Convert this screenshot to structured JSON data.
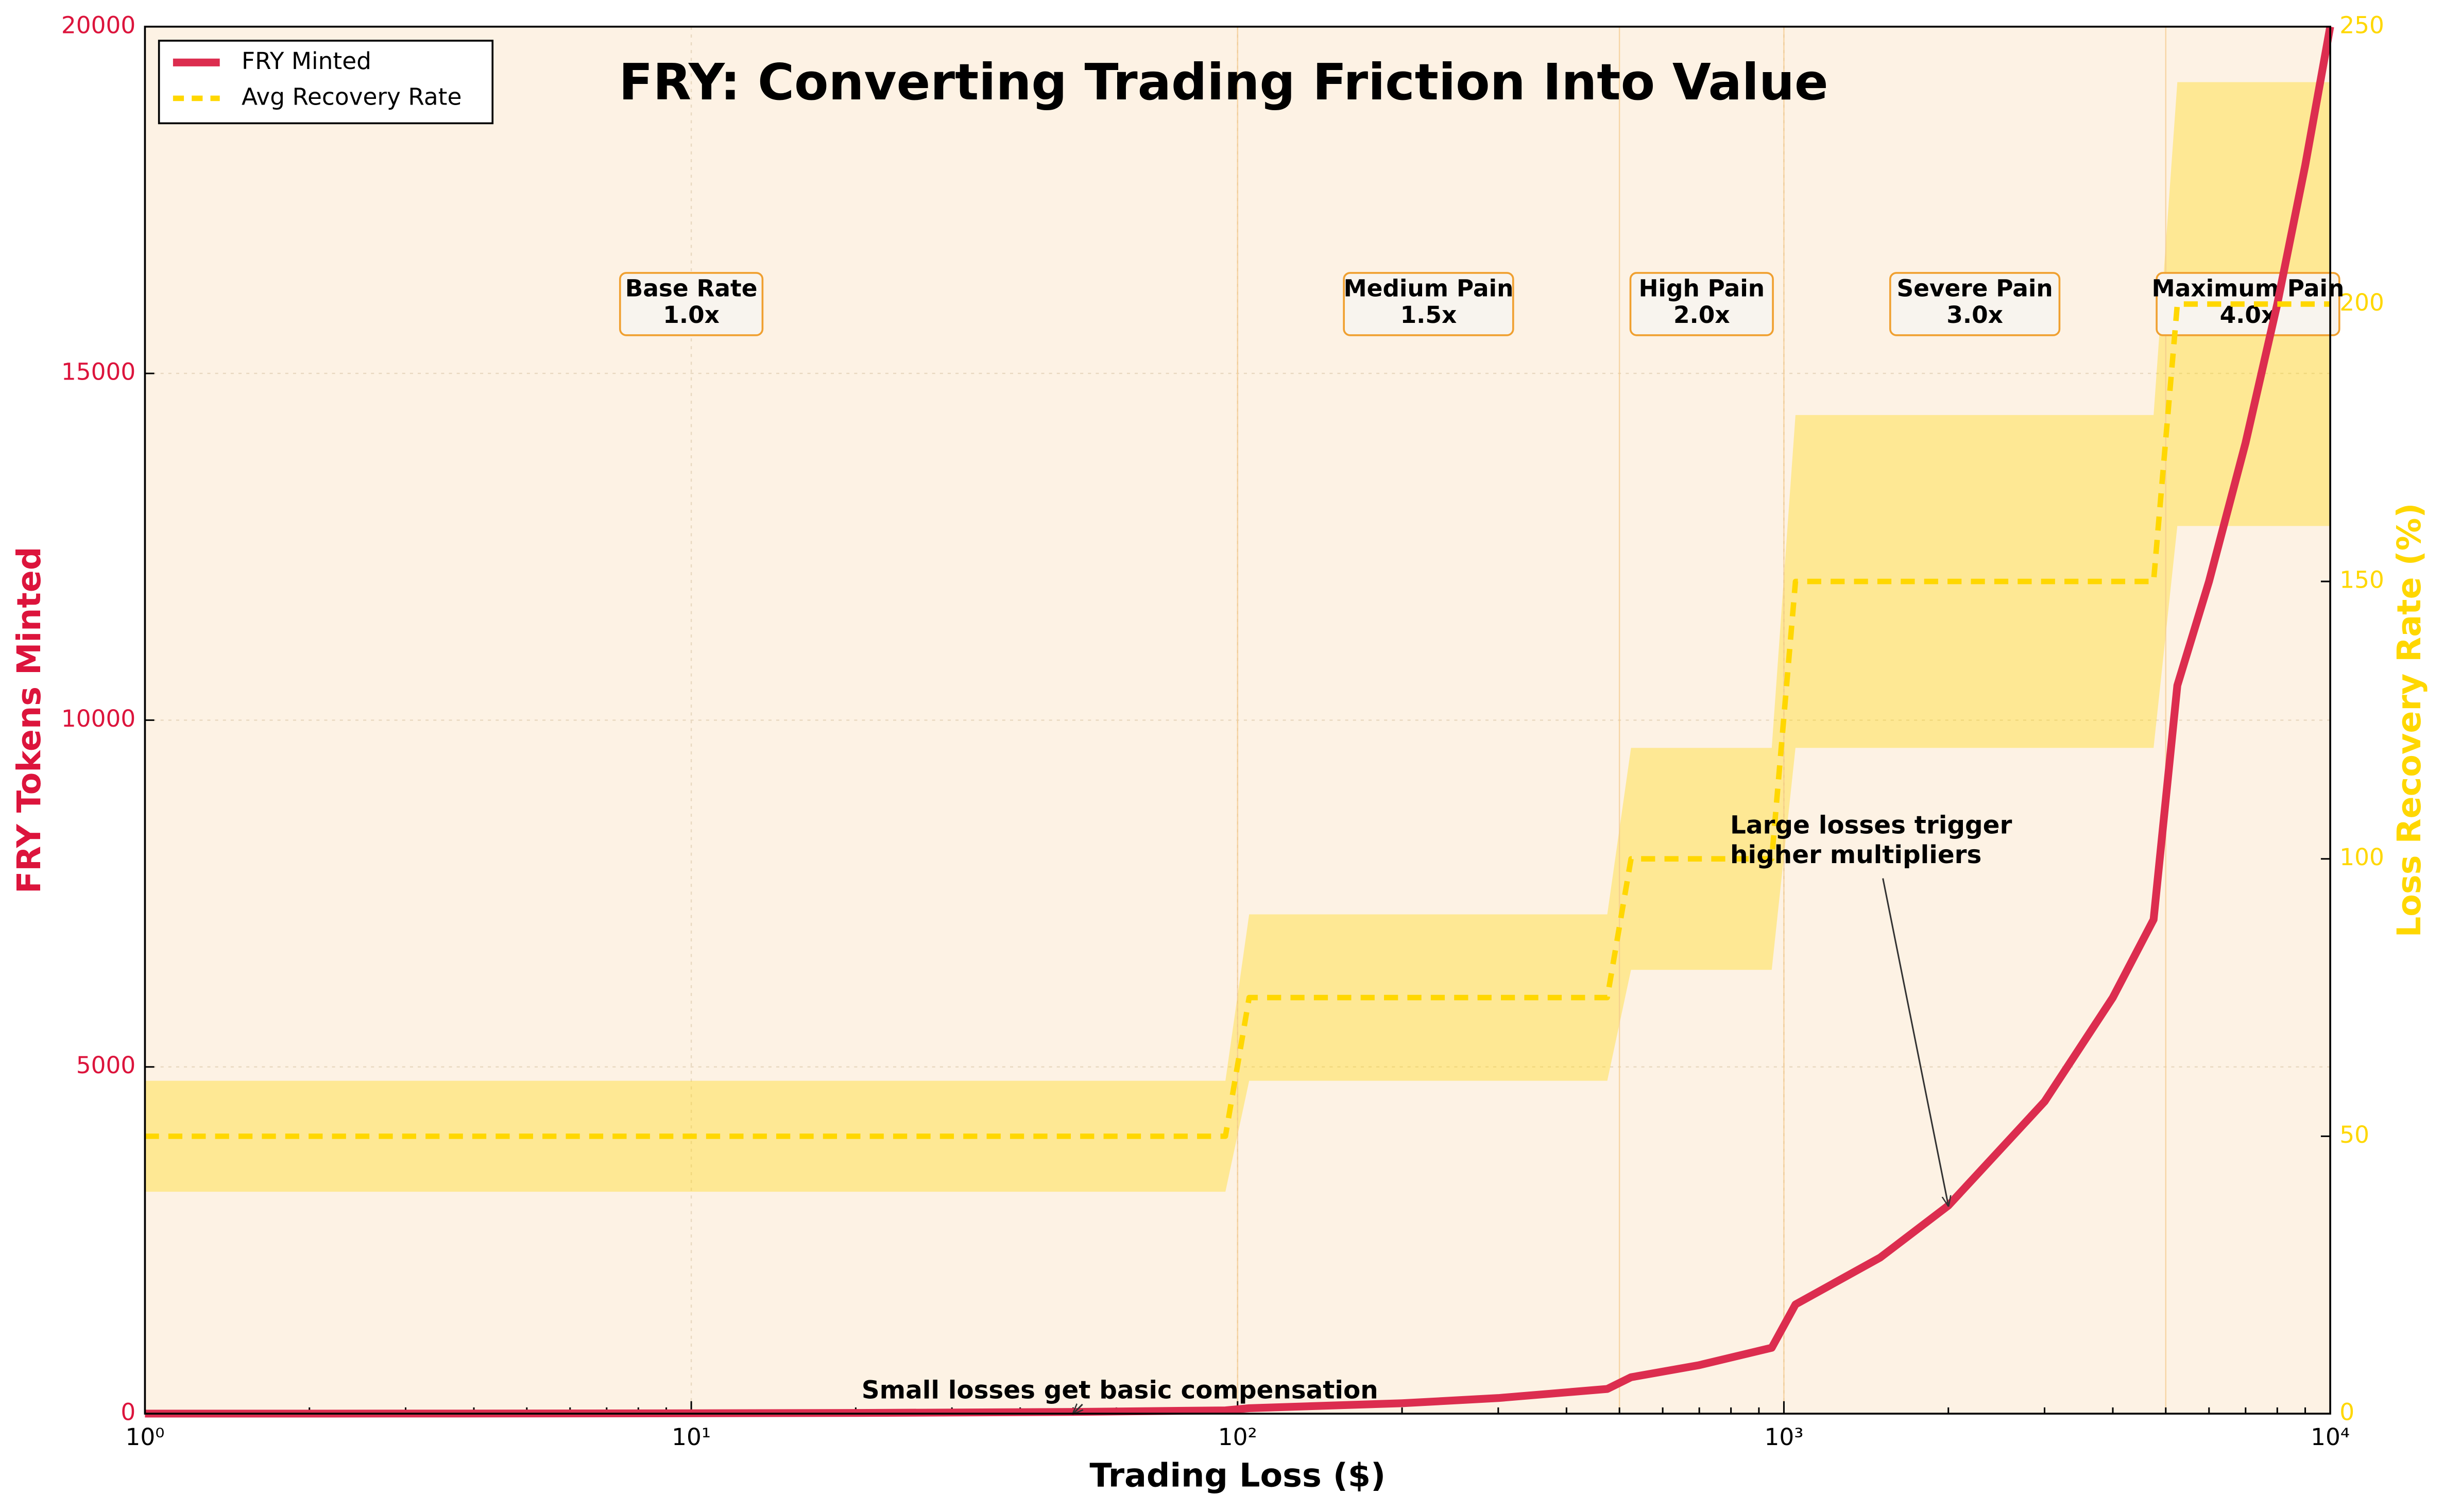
{
  "chart_data": {
    "type": "line",
    "title": "FRY: Converting Trading Friction Into Value",
    "xlabel": "Trading Loss ($)",
    "ylabel": "FRY Tokens Minted",
    "y2label": "Loss Recovery Rate (%)",
    "xscale": "log",
    "grid": true,
    "legend": "upper left",
    "xlim": [
      1,
      10000
    ],
    "xticks": [
      {
        "value": 1,
        "label": "10⁰"
      },
      {
        "value": 10,
        "label": "10¹"
      },
      {
        "value": 100,
        "label": "10²"
      },
      {
        "value": 1000,
        "label": "10³"
      },
      {
        "value": 10000,
        "label": "10⁴"
      }
    ],
    "ylim": [
      0,
      20000
    ],
    "yticks": [
      0,
      5000,
      10000,
      15000,
      20000
    ],
    "y2lim": [
      0,
      250
    ],
    "y2ticks": [
      0,
      50,
      100,
      150,
      200,
      250
    ],
    "x": [
      1,
      2,
      5,
      10,
      20,
      50,
      95,
      105,
      200,
      300,
      475,
      525,
      700,
      950,
      1050,
      1500,
      2000,
      3000,
      4000,
      4750,
      5250,
      6000,
      7000,
      8000,
      9000,
      10000
    ],
    "series": [
      {
        "name": "FRY Minted",
        "color": "#dc2d4f",
        "values": [
          0.5,
          1,
          2.5,
          5,
          10,
          25,
          47.5,
          78.75,
          150,
          225,
          356.25,
          525,
          700,
          950,
          1575,
          2250,
          3000,
          4500,
          6000,
          7125,
          10500,
          12000,
          14000,
          16000,
          18000,
          20000
        ]
      },
      {
        "name": "Avg Recovery Rate",
        "color": "#ffd700",
        "axis": "y2",
        "style": "dashed",
        "values": [
          50,
          50,
          50,
          50,
          50,
          50,
          50,
          75,
          75,
          75,
          75,
          100,
          100,
          100,
          150,
          150,
          150,
          150,
          150,
          150,
          200,
          200,
          200,
          200,
          200,
          200
        ]
      }
    ],
    "band": {
      "axis": "y2",
      "color": "#ffd700",
      "lower": [
        40,
        40,
        40,
        40,
        40,
        40,
        40,
        60,
        60,
        60,
        60,
        80,
        80,
        80,
        120,
        120,
        120,
        120,
        120,
        120,
        160,
        160,
        160,
        160,
        160,
        160
      ],
      "upper": [
        60,
        60,
        60,
        60,
        60,
        60,
        60,
        90,
        90,
        90,
        90,
        120,
        120,
        120,
        180,
        180,
        180,
        180,
        180,
        180,
        240,
        240,
        240,
        240,
        240,
        240
      ]
    },
    "zones": [
      {
        "lines": [
          "Base Rate",
          "1.0x"
        ],
        "range": [
          1,
          100
        ]
      },
      {
        "lines": [
          "Medium Pain",
          "1.5x"
        ],
        "range": [
          100,
          500
        ]
      },
      {
        "lines": [
          "High Pain",
          "2.0x"
        ],
        "range": [
          500,
          1000
        ]
      },
      {
        "lines": [
          "Severe Pain",
          "3.0x"
        ],
        "range": [
          1000,
          5000
        ]
      },
      {
        "lines": [
          "Maximum Pain",
          "4.0x"
        ],
        "range": [
          5000,
          10000
        ]
      }
    ],
    "annotations": [
      {
        "lines": [
          "Large losses trigger",
          "higher multipliers"
        ],
        "xy": [
          2000,
          3000
        ]
      },
      {
        "lines": [
          "Small losses get basic compensation"
        ],
        "xy": [
          50,
          0
        ]
      }
    ]
  }
}
